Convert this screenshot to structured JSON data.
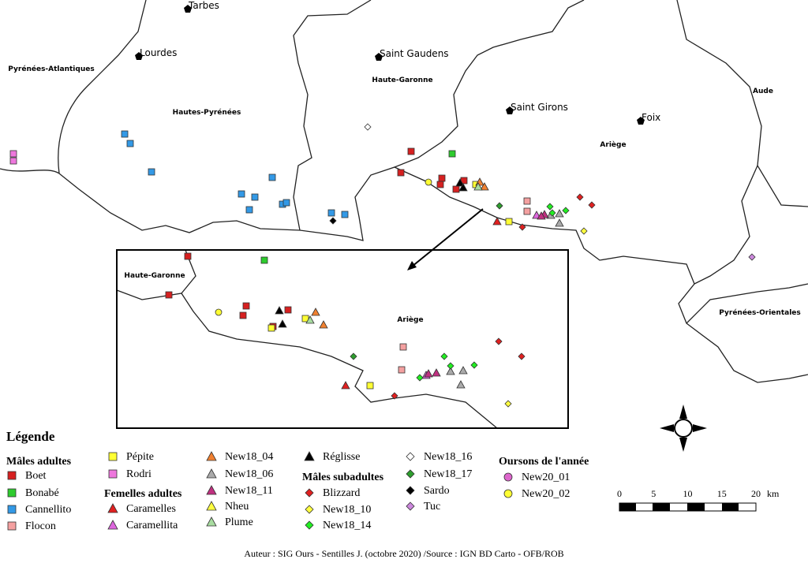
{
  "places": [
    "Tarbes",
    "Lourdes",
    "Saint Gaudens",
    "Saint Girons",
    "Foix"
  ],
  "departments": [
    "Pyrénées-Atlantiques",
    "Hautes-Pyrénées",
    "Haute-Garonne",
    "Ariège",
    "Aude",
    "Pyrénées-Orientales"
  ],
  "inset": {
    "labels": [
      "Haute-Garonne",
      "Ariège"
    ]
  },
  "legend": {
    "title": "Légende",
    "groups": [
      {
        "title": "Mâles adultes",
        "shape": "square",
        "items": [
          {
            "name": "Boet",
            "color": "#d62020"
          },
          {
            "name": "Bonabé",
            "color": "#2ecc2e"
          },
          {
            "name": "Cannellito",
            "color": "#3399e6"
          },
          {
            "name": "Flocon",
            "color": "#f4a0a0"
          },
          {
            "name": "Pépite",
            "color": "#ffff33"
          },
          {
            "name": "Rodri",
            "color": "#ee77dd"
          }
        ]
      },
      {
        "title": "Femelles adultes",
        "shape": "triangle",
        "items": [
          {
            "name": "Caramelles",
            "color": "#e02020"
          },
          {
            "name": "Caramellita",
            "color": "#dd66dd"
          },
          {
            "name": "New18_04",
            "color": "#f08030"
          },
          {
            "name": "New18_06",
            "color": "#aaaaaa"
          },
          {
            "name": "New18_11",
            "color": "#c03080"
          },
          {
            "name": "Nheu",
            "color": "#ffff40"
          },
          {
            "name": "Plume",
            "color": "#a8dca0"
          },
          {
            "name": "Réglisse",
            "color": "#000000"
          }
        ]
      },
      {
        "title": "Mâles subadultes",
        "shape": "diamond",
        "items": [
          {
            "name": "Blizzard",
            "color": "#e02020"
          },
          {
            "name": "New18_10",
            "color": "#ffff40"
          },
          {
            "name": "New18_14",
            "color": "#22ee22"
          },
          {
            "name": "New18_16",
            "color": "#ffffff"
          },
          {
            "name": "New18_17",
            "color": "#2e9e2e"
          },
          {
            "name": "Sardo",
            "color": "#000000"
          },
          {
            "name": "Tuc",
            "color": "#cc88dd"
          }
        ]
      },
      {
        "title": "Oursons de l'année",
        "shape": "circle",
        "items": [
          {
            "name": "New20_01",
            "color": "#dd66cc"
          },
          {
            "name": "New20_02",
            "color": "#ffff33"
          }
        ]
      }
    ]
  },
  "scale": {
    "ticks": [
      0,
      5,
      10,
      15,
      20
    ],
    "unit": "km"
  },
  "credit": "Auteur : SIG Ours - Sentilles J. (octobre 2020) /Source : IGN BD Carto - OFB/ROB"
}
